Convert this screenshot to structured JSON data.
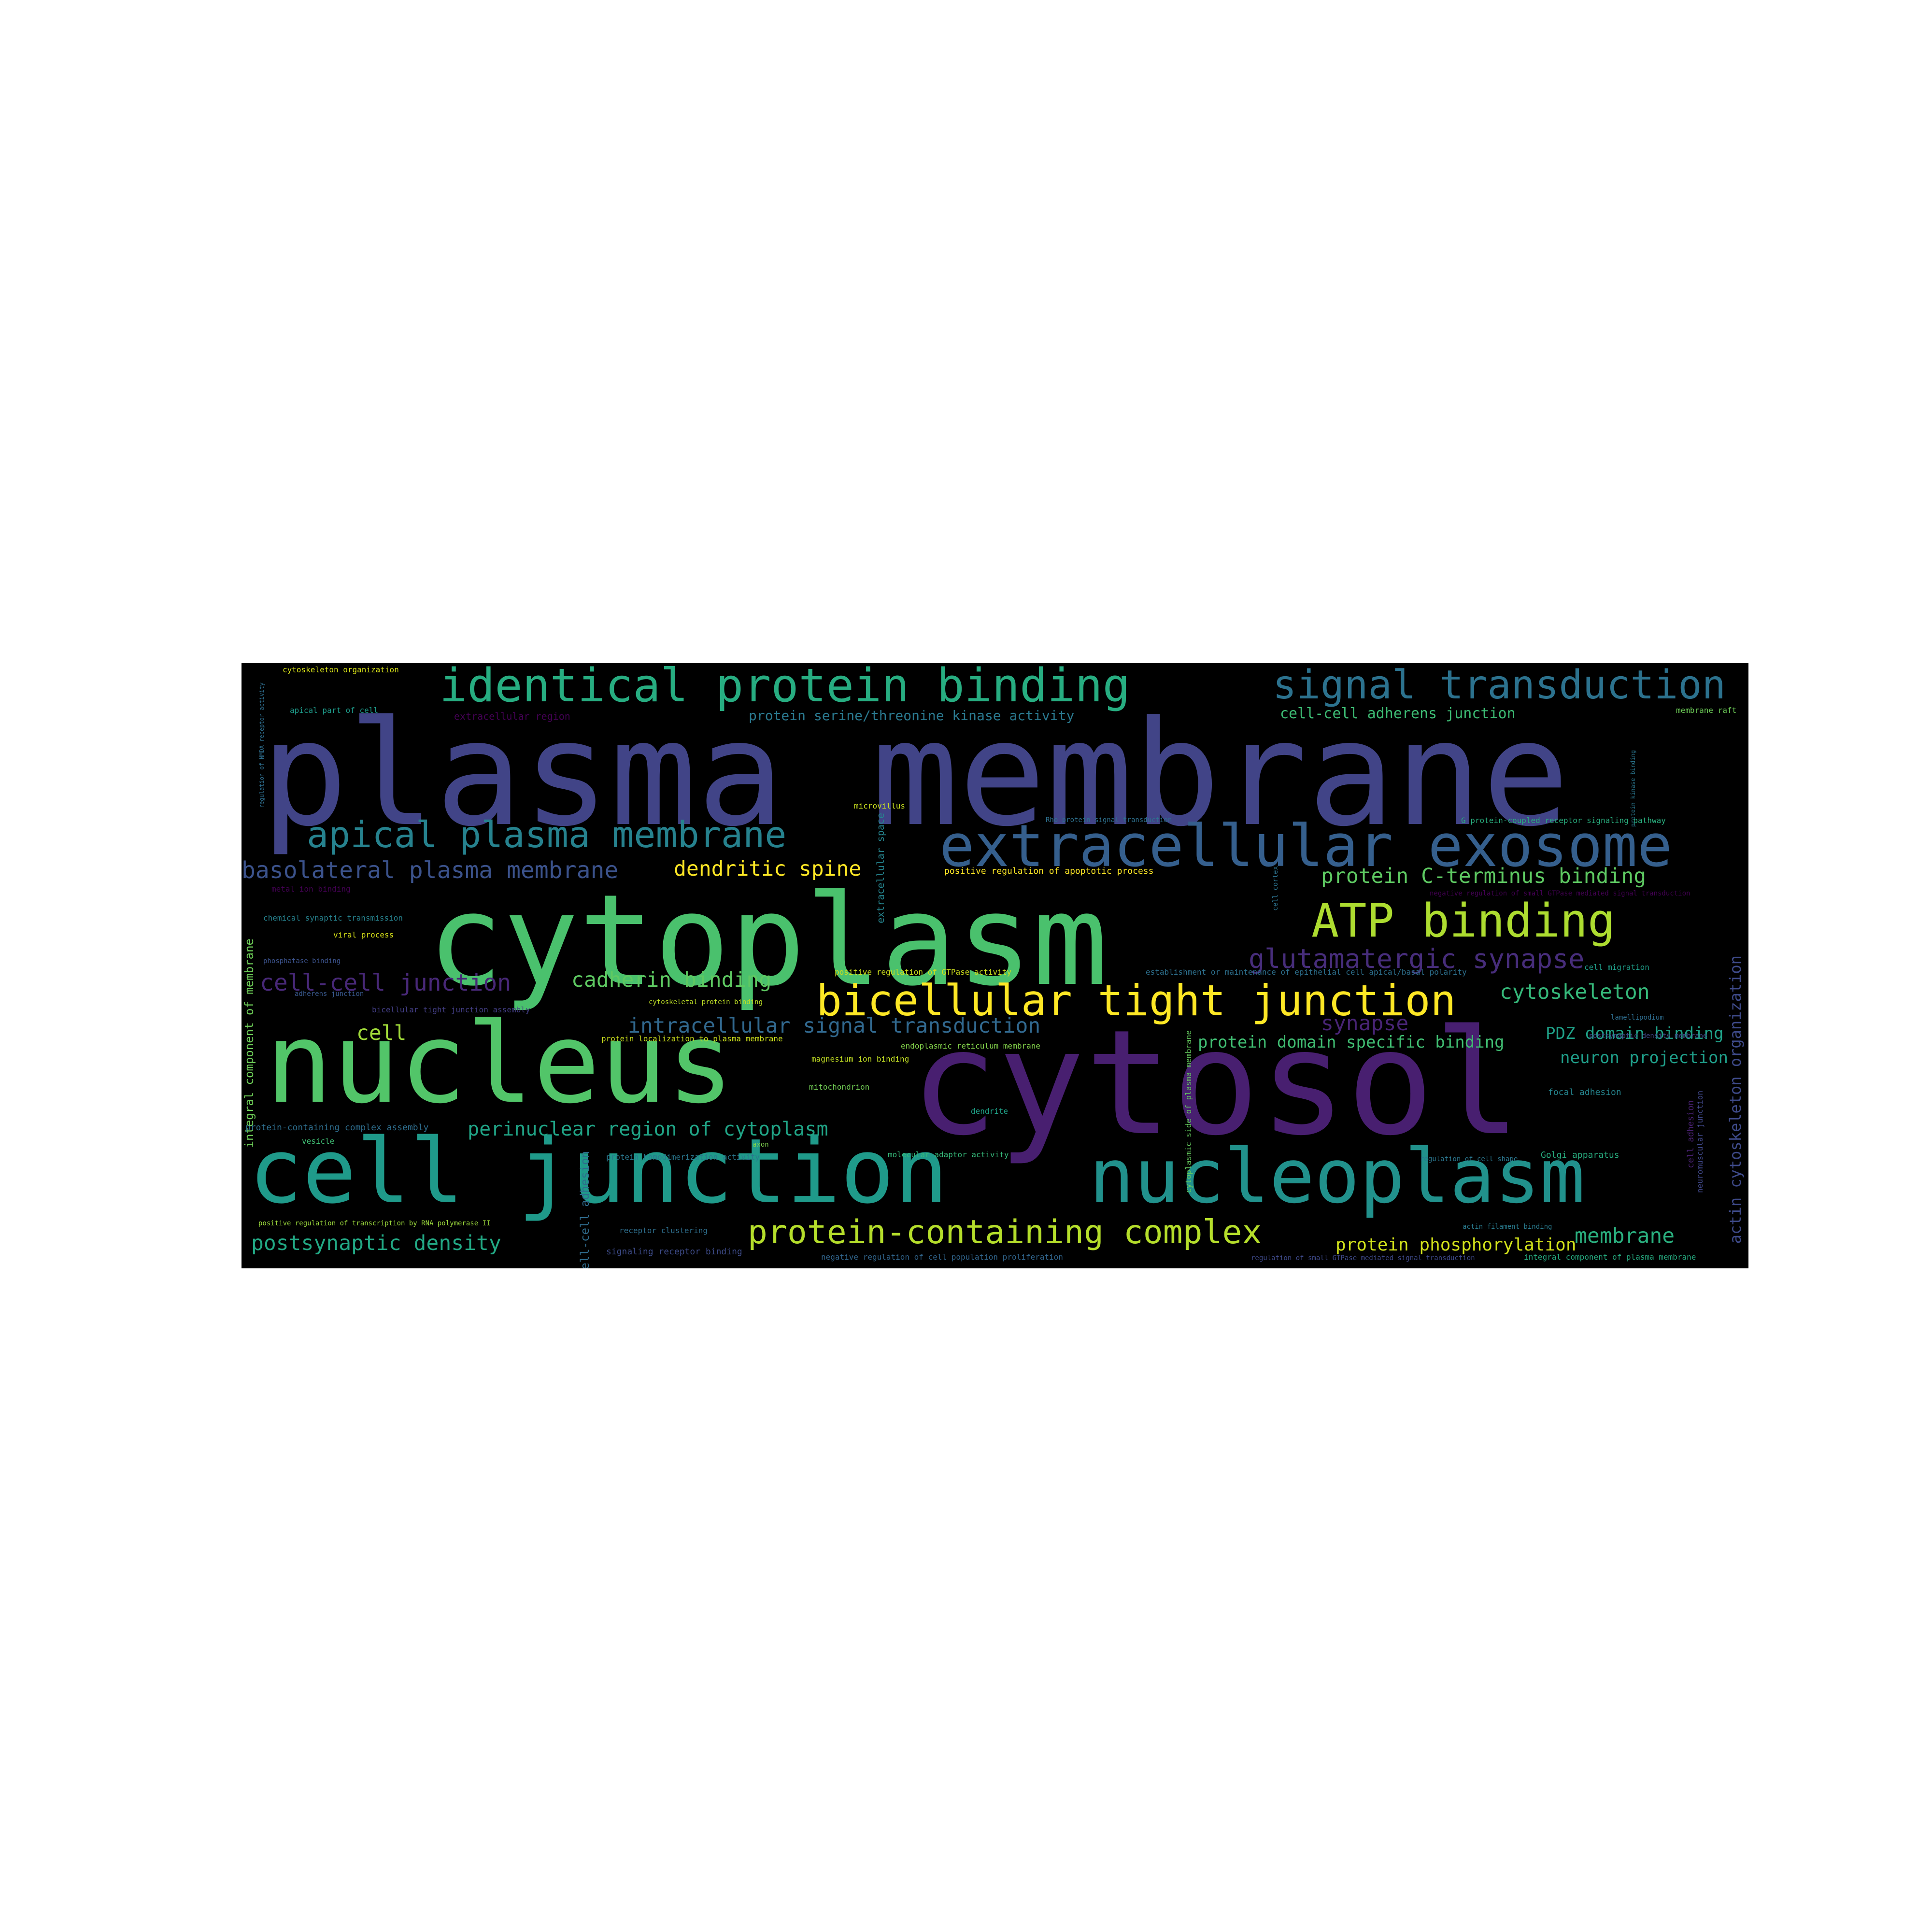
{
  "cloud": {
    "background": "#000000",
    "words": [
      {
        "text": "plasma membrane",
        "color": "#414487"
      },
      {
        "text": "cytosol",
        "color": "#481f70"
      },
      {
        "text": "cytoplasm",
        "color": "#4ac16d"
      },
      {
        "text": "nucleus",
        "color": "#52c569"
      },
      {
        "text": "cell junction",
        "color": "#1f9a8a"
      },
      {
        "text": "nucleoplasm",
        "color": "#21918c"
      },
      {
        "text": "extracellular exosome",
        "color": "#355f8d"
      },
      {
        "text": "identical protein binding",
        "color": "#27ad81"
      },
      {
        "text": "signal transduction",
        "color": "#2c728e"
      },
      {
        "text": "apical plasma membrane",
        "color": "#26828e"
      },
      {
        "text": "bicellular tight junction",
        "color": "#fde725"
      },
      {
        "text": "ATP binding",
        "color": "#addc30"
      },
      {
        "text": "protein-containing complex",
        "color": "#b5de2b"
      },
      {
        "text": "glutamatergic synapse",
        "color": "#472d7b"
      },
      {
        "text": "basolateral plasma membrane",
        "color": "#3b528b"
      },
      {
        "text": "cell-cell junction",
        "color": "#482878"
      },
      {
        "text": "cadherin binding",
        "color": "#5ec962"
      },
      {
        "text": "dendritic spine",
        "color": "#fde725"
      },
      {
        "text": "cytoskeleton",
        "color": "#35b779"
      },
      {
        "text": "intracellular signal transduction",
        "color": "#31688e"
      },
      {
        "text": "protein C-terminus binding",
        "color": "#5ec962"
      },
      {
        "text": "synapse",
        "color": "#482475"
      },
      {
        "text": "perinuclear region of cytoplasm",
        "color": "#20a486"
      },
      {
        "text": "postsynaptic density",
        "color": "#22a884"
      },
      {
        "text": "membrane",
        "color": "#2ab07f"
      },
      {
        "text": "protein phosphorylation",
        "color": "#d2e21b"
      },
      {
        "text": "protein domain specific binding",
        "color": "#40bd72"
      },
      {
        "text": "PDZ domain binding",
        "color": "#1fa188"
      },
      {
        "text": "neuron projection",
        "color": "#1f9e89"
      },
      {
        "text": "cell",
        "color": "#a0da39"
      },
      {
        "text": "protein serine/threonine kinase activity",
        "color": "#2a788e"
      },
      {
        "text": "cell-cell adherens junction",
        "color": "#3dbc74"
      },
      {
        "text": "actin cytoskeleton organization",
        "color": "#3e4a89"
      },
      {
        "text": "integral component of membrane",
        "color": "#6ece58"
      },
      {
        "text": "cytoskeleton organization",
        "color": "#d8e219"
      },
      {
        "text": "apical part of cell",
        "color": "#1e9b8a"
      },
      {
        "text": "extracellular region",
        "color": "#440154"
      },
      {
        "text": "membrane raft",
        "color": "#6ece58"
      },
      {
        "text": "microvillus",
        "color": "#cae11f"
      },
      {
        "text": "extracellular space",
        "color": "#25848e"
      },
      {
        "text": "Rho protein signal transduction",
        "color": "#2d708e"
      },
      {
        "text": "G protein-coupled receptor signaling pathway",
        "color": "#29af7f"
      },
      {
        "text": "positive regulation of apoptotic process",
        "color": "#fde725"
      },
      {
        "text": "cell cortex",
        "color": "#2c728e"
      },
      {
        "text": "regulation of NMDA receptor activity",
        "color": "#2e6e8e"
      },
      {
        "text": "metal ion binding",
        "color": "#440154"
      },
      {
        "text": "chemical synaptic transmission",
        "color": "#26828e"
      },
      {
        "text": "viral process",
        "color": "#d8e219"
      },
      {
        "text": "phosphatase binding",
        "color": "#3b528b"
      },
      {
        "text": "adherens junction",
        "color": "#38588c"
      },
      {
        "text": "bicellular tight junction assembly",
        "color": "#433e85"
      },
      {
        "text": "positive regulation of GTPase activity",
        "color": "#d0e11c"
      },
      {
        "text": "cytoskeletal protein binding",
        "color": "#bddf26"
      },
      {
        "text": "establishment or maintenance of epithelial cell apical/basal polarity",
        "color": "#2d708e"
      },
      {
        "text": "cell migration",
        "color": "#1f9e89"
      },
      {
        "text": "protein localization to plasma membrane",
        "color": "#cde11d"
      },
      {
        "text": "endoplasmic reticulum membrane",
        "color": "#84d44b"
      },
      {
        "text": "magnesium ion binding",
        "color": "#c2df23"
      },
      {
        "text": "mitochondrion",
        "color": "#73d056"
      },
      {
        "text": "dendrite",
        "color": "#1fa187"
      },
      {
        "text": "cytoplasmic side of plasma membrane",
        "color": "#65cb5e"
      },
      {
        "text": "focal adhesion",
        "color": "#25858e"
      },
      {
        "text": "lamellipodium",
        "color": "#2e6d8e"
      },
      {
        "text": "postsynaptic density membrane",
        "color": "#3f4788"
      },
      {
        "text": "protein-containing complex assembly",
        "color": "#2e6e8e"
      },
      {
        "text": "vesicle",
        "color": "#3fbc73"
      },
      {
        "text": "axon",
        "color": "#7fd34e"
      },
      {
        "text": "protein homodimerization activity",
        "color": "#2a778e"
      },
      {
        "text": "molecular adaptor activity",
        "color": "#35b779"
      },
      {
        "text": "regulation of cell shape",
        "color": "#2a768e"
      },
      {
        "text": "Golgi apparatus",
        "color": "#28ae80"
      },
      {
        "text": "positive regulation of transcription by RNA polymerase II",
        "color": "#9bd93c"
      },
      {
        "text": "cell-cell adhesion",
        "color": "#2f6c8e"
      },
      {
        "text": "receptor clustering",
        "color": "#2e6f8e"
      },
      {
        "text": "actin filament binding",
        "color": "#297b8e"
      },
      {
        "text": "signaling receptor binding",
        "color": "#3e4c8a"
      },
      {
        "text": "negative regulation of cell population proliferation",
        "color": "#31668e"
      },
      {
        "text": "regulation of small GTPase mediated signal transduction",
        "color": "#3e4989"
      },
      {
        "text": "integral component of plasma membrane",
        "color": "#26ad81"
      },
      {
        "text": "neuromuscular junction",
        "color": "#3f4788"
      },
      {
        "text": "cell adhesion",
        "color": "#482071"
      },
      {
        "text": "protein kinase binding",
        "color": "#2a768e"
      },
      {
        "text": "negative regulation of small GTPase mediated signal transduction",
        "color": "#440154"
      }
    ]
  }
}
